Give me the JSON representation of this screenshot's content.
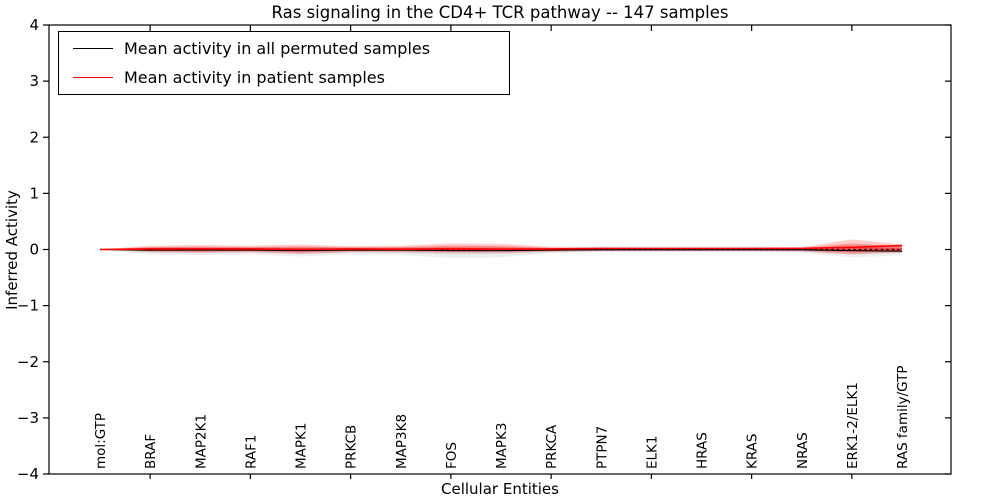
{
  "chart_data": {
    "type": "line",
    "title": "Ras signaling in the CD4+ TCR pathway -- 147 samples",
    "xlabel": "Cellular Entities",
    "ylabel": "Inferred Activity",
    "ylim": [
      -4,
      4
    ],
    "yticks": [
      4,
      3,
      2,
      1,
      0,
      -1,
      -2,
      -3,
      -4
    ],
    "grid": false,
    "legend_position": "upper left",
    "background_color": "#ffffff",
    "frame_color": "#000000",
    "categories": [
      "mol:GTP",
      "BRAF",
      "MAP2K1",
      "RAF1",
      "MAPK1",
      "PRKCB",
      "MAP3K8",
      "FOS",
      "MAPK3",
      "PRKCA",
      "PTPN7",
      "ELK1",
      "HRAS",
      "KRAS",
      "NRAS",
      "ERK1-2/ELK1",
      "RAS family/GTP"
    ],
    "series": [
      {
        "name": "Mean activity in all permuted samples",
        "color": "#000000",
        "style": "solid",
        "values": [
          0,
          -0.01,
          -0.01,
          -0.01,
          -0.02,
          -0.01,
          -0.01,
          -0.02,
          -0.02,
          -0.01,
          -0.005,
          -0.005,
          -0.005,
          -0.005,
          -0.005,
          -0.02,
          -0.03
        ]
      },
      {
        "name": "Mean activity in patient samples",
        "color": "#ff0000",
        "style": "solid",
        "values": [
          0,
          0.01,
          0.01,
          0.01,
          0.0,
          0.01,
          0.005,
          0.01,
          0.005,
          0.01,
          0.02,
          0.02,
          0.02,
          0.02,
          0.02,
          0.04,
          0.07
        ]
      }
    ],
    "bands": [
      {
        "series": "Mean activity in all permuted samples",
        "color": "#808080",
        "upper": [
          0,
          0.045,
          0.05,
          0.045,
          0.05,
          0.045,
          0.045,
          0.05,
          0.05,
          0.035,
          0.025,
          0.025,
          0.025,
          0.025,
          0.035,
          0.05,
          0.05
        ],
        "lower": [
          0,
          -0.09,
          -0.1,
          -0.09,
          -0.125,
          -0.09,
          -0.1,
          -0.15,
          -0.14,
          -0.07,
          -0.045,
          -0.045,
          -0.045,
          -0.045,
          -0.055,
          -0.14,
          -0.105
        ]
      },
      {
        "series": "Mean activity in patient samples",
        "color": "#ff0000",
        "upper": [
          0,
          0.07,
          0.08,
          0.07,
          0.09,
          0.06,
          0.07,
          0.11,
          0.1,
          0.05,
          0.04,
          0.035,
          0.035,
          0.035,
          0.045,
          0.18,
          0.09
        ],
        "lower": [
          0,
          -0.05,
          -0.06,
          -0.05,
          -0.08,
          -0.05,
          -0.05,
          -0.06,
          -0.06,
          -0.045,
          -0.03,
          -0.03,
          -0.03,
          -0.03,
          -0.035,
          -0.09,
          -0.05
        ]
      }
    ],
    "zero_line": {
      "y": 0,
      "color": "#000000",
      "style": "dashed"
    }
  },
  "legend": {
    "items": [
      {
        "label": "Mean activity in all permuted samples",
        "color": "#000000"
      },
      {
        "label": "Mean activity in patient samples",
        "color": "#ff0000"
      }
    ]
  }
}
